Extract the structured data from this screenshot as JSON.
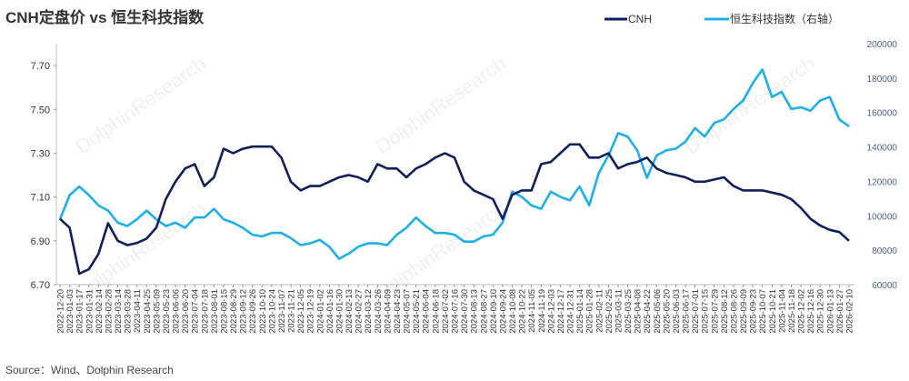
{
  "chart_data": {
    "type": "line",
    "title": "CNH定盘价 vs 恒生科技指数",
    "source": "Source：Wind、Dolphin Research",
    "watermark": "DolphinResearch",
    "legend_position": "top-right",
    "grid": false,
    "colors": {
      "CNH": "#0e1f5b",
      "HSTECH": "#1eaee8",
      "right_axis_text": "#4a5d8a"
    },
    "y_left": {
      "ylim": [
        6.7,
        7.8
      ],
      "ticks": [
        "6.70",
        "6.90",
        "7.10",
        "7.30",
        "7.50",
        "7.70"
      ]
    },
    "y_right": {
      "ylim": [
        60000,
        200000
      ],
      "ticks": [
        "60000",
        "80000",
        "100000",
        "120000",
        "140000",
        "160000",
        "180000",
        "200000"
      ]
    },
    "x": [
      "2022-12-20",
      "2023-01-03",
      "2023-01-17",
      "2023-01-31",
      "2023-02-14",
      "2023-02-28",
      "2023-03-14",
      "2023-03-28",
      "2023-04-11",
      "2023-04-25",
      "2023-05-09",
      "2023-05-23",
      "2023-06-06",
      "2023-06-20",
      "2023-07-04",
      "2023-07-18",
      "2023-08-01",
      "2023-08-15",
      "2023-08-29",
      "2023-09-12",
      "2023-09-26",
      "2023-10-10",
      "2023-10-24",
      "2023-11-07",
      "2023-11-21",
      "2023-12-05",
      "2023-12-19",
      "2024-01-02",
      "2024-01-16",
      "2024-01-30",
      "2024-02-13",
      "2024-02-27",
      "2024-03-12",
      "2024-03-26",
      "2024-04-09",
      "2024-04-23",
      "2024-05-07",
      "2024-05-21",
      "2024-06-04",
      "2024-06-18",
      "2024-07-02",
      "2024-07-16",
      "2024-07-30",
      "2024-08-13",
      "2024-08-27",
      "2024-09-10",
      "2024-09-24",
      "2024-10-08",
      "2024-10-22",
      "2024-11-05",
      "2024-11-19",
      "2024-12-03",
      "2024-12-17",
      "2024-12-31",
      "2025-01-14",
      "2025-01-28",
      "2025-02-11",
      "2025-02-25",
      "2025-03-11",
      "2025-03-25",
      "2025-04-08",
      "2025-04-22",
      "2025-05-06",
      "2025-05-20",
      "2025-06-03",
      "2025-06-17",
      "2025-07-01",
      "2025-07-15",
      "2025-07-29",
      "2025-08-12",
      "2025-08-26",
      "2025-09-09",
      "2025-09-23",
      "2025-10-07",
      "2025-10-21",
      "2025-11-04",
      "2025-11-18",
      "2025-12-02",
      "2025-12-16",
      "2025-12-30",
      "2026-01-13",
      "2026-01-27",
      "2026-02-10"
    ],
    "series": [
      {
        "name": "CNH",
        "axis": "left",
        "values": [
          7.0,
          6.96,
          6.75,
          6.77,
          6.84,
          6.98,
          6.9,
          6.88,
          6.89,
          6.91,
          6.96,
          7.09,
          7.17,
          7.23,
          7.25,
          7.15,
          7.19,
          7.32,
          7.3,
          7.32,
          7.33,
          7.33,
          7.33,
          7.28,
          7.17,
          7.13,
          7.15,
          7.15,
          7.17,
          7.19,
          7.2,
          7.19,
          7.17,
          7.25,
          7.23,
          7.23,
          7.19,
          7.23,
          7.25,
          7.28,
          7.3,
          7.28,
          7.17,
          7.13,
          7.11,
          7.09,
          7.0,
          7.11,
          7.13,
          7.13,
          7.25,
          7.26,
          7.3,
          7.34,
          7.34,
          7.28,
          7.28,
          7.3,
          7.23,
          7.25,
          7.26,
          7.28,
          7.23,
          7.21,
          7.2,
          7.19,
          7.17,
          7.17,
          7.18,
          7.19,
          7.15,
          7.13,
          7.13,
          7.13,
          7.12,
          7.11,
          7.09,
          7.05,
          7.0,
          6.97,
          6.95,
          6.94,
          6.9
        ]
      },
      {
        "name": "恒生科技指数（右轴）",
        "axis": "right",
        "values": [
          98000,
          112000,
          117000,
          112000,
          106000,
          103000,
          96000,
          94000,
          98000,
          103000,
          98000,
          94000,
          96000,
          93000,
          99000,
          99000,
          104000,
          98000,
          96000,
          93000,
          89000,
          88000,
          90000,
          90000,
          87000,
          83000,
          84000,
          86000,
          82000,
          75000,
          78000,
          82000,
          84000,
          84000,
          83000,
          89000,
          93000,
          99000,
          94000,
          90000,
          90000,
          89000,
          85000,
          85000,
          88000,
          89000,
          96000,
          114000,
          111000,
          106000,
          104000,
          114000,
          111000,
          109000,
          117000,
          106000,
          125000,
          135000,
          148000,
          146000,
          138000,
          122000,
          135000,
          138000,
          139000,
          143000,
          151000,
          146000,
          154000,
          156000,
          162000,
          167000,
          177000,
          185000,
          169000,
          172000,
          162000,
          163000,
          161000,
          167000,
          169000,
          156000,
          152000
        ]
      }
    ]
  }
}
